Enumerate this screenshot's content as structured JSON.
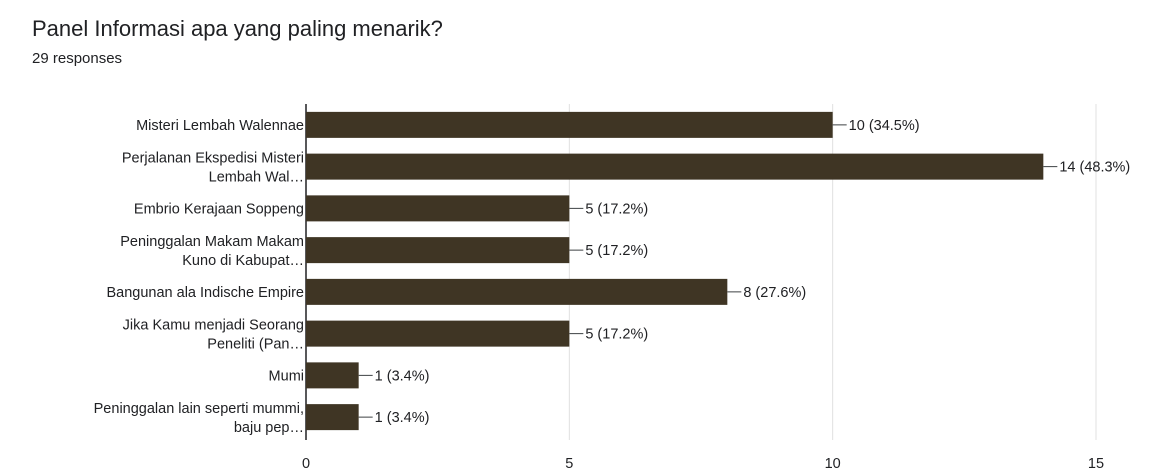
{
  "question": {
    "title": "Panel Informasi apa yang paling menarik?",
    "responses": "29 responses"
  },
  "chart_data": {
    "type": "bar",
    "orientation": "horizontal",
    "title": "Panel Informasi apa yang paling menarik?",
    "subtitle": "29 responses",
    "categories": [
      [
        "Misteri Lembah Walennae"
      ],
      [
        "Perjalanan Ekspedisi Misteri",
        "Lembah Wal…"
      ],
      [
        "Embrio Kerajaan Soppeng"
      ],
      [
        "Peninggalan Makam Makam",
        "Kuno di Kabupat…"
      ],
      [
        "Bangunan ala Indische Empire"
      ],
      [
        "Jika Kamu menjadi Seorang",
        "Peneliti (Pan…"
      ],
      [
        "Mumi"
      ],
      [
        "Peninggalan lain seperti mummi,",
        "baju pep…"
      ]
    ],
    "values": [
      10,
      14,
      5,
      5,
      8,
      5,
      1,
      1
    ],
    "data_labels": [
      "10 (34.5%)",
      "14 (48.3%)",
      "5 (17.2%)",
      "5 (17.2%)",
      "8 (27.6%)",
      "5 (17.2%)",
      "1 (3.4%)",
      "1 (3.4%)"
    ],
    "xlim": [
      0,
      15
    ],
    "xticks": [
      0,
      5,
      10,
      15
    ],
    "grid": true,
    "bar_color": "#3f3524",
    "grid_color": "#e0e0e0"
  }
}
